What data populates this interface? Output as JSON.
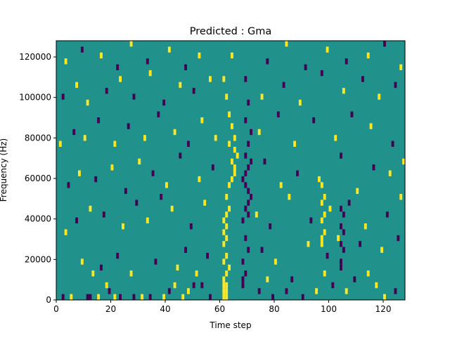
{
  "chart_data": {
    "type": "heatmap",
    "title": "Predicted : Gma",
    "xlabel": "Time step",
    "ylabel": "Frequency (Hz)",
    "xlim": [
      0,
      128
    ],
    "ylim": [
      0,
      128000
    ],
    "x_ticks": [
      0,
      20,
      40,
      60,
      80,
      100,
      120
    ],
    "y_ticks": [
      0,
      20000,
      40000,
      60000,
      80000,
      100000,
      120000
    ],
    "y_tick_labels": [
      "0",
      "20000",
      "40000",
      "60000",
      "80000",
      "100000",
      "120000"
    ],
    "colors": {
      "background": "#21918c",
      "high": "#fde725",
      "low": "#440154"
    },
    "grid": false,
    "legend": false,
    "rows": 44,
    "cells": [
      {
        "t": 61,
        "r": 0,
        "v": 1
      },
      {
        "t": 61,
        "r": 1,
        "v": 1
      },
      {
        "t": 61,
        "r": 2,
        "v": 1
      },
      {
        "t": 62,
        "r": 0,
        "v": 1
      },
      {
        "t": 62,
        "r": 1,
        "v": 1
      },
      {
        "t": 62,
        "r": 2,
        "v": 1
      },
      {
        "t": 61,
        "r": 3,
        "v": 1
      },
      {
        "t": 62,
        "r": 4,
        "v": 1
      },
      {
        "t": 63,
        "r": 5,
        "v": 1
      },
      {
        "t": 61,
        "r": 6,
        "v": 1
      },
      {
        "t": 62,
        "r": 7,
        "v": 1
      },
      {
        "t": 61,
        "r": 9,
        "v": 1
      },
      {
        "t": 62,
        "r": 10,
        "v": 1
      },
      {
        "t": 61,
        "r": 11,
        "v": 1
      },
      {
        "t": 62,
        "r": 12,
        "v": 1
      },
      {
        "t": 61,
        "r": 13,
        "v": 1
      },
      {
        "t": 62,
        "r": 14,
        "v": 1
      },
      {
        "t": 63,
        "r": 15,
        "v": 1
      },
      {
        "t": 62,
        "r": 17,
        "v": 1
      },
      {
        "t": 63,
        "r": 19,
        "v": 1
      },
      {
        "t": 64,
        "r": 20,
        "v": 1
      },
      {
        "t": 65,
        "r": 21,
        "v": 1
      },
      {
        "t": 65,
        "r": 22,
        "v": 1
      },
      {
        "t": 64,
        "r": 23,
        "v": 1
      },
      {
        "t": 66,
        "r": 24,
        "v": 1
      },
      {
        "t": 65,
        "r": 25,
        "v": 1
      },
      {
        "t": 63,
        "r": 26,
        "v": 1
      },
      {
        "t": 65,
        "r": 27,
        "v": 1
      },
      {
        "t": 64,
        "r": 29,
        "v": 1
      },
      {
        "t": 63,
        "r": 31,
        "v": 1
      },
      {
        "t": 62,
        "r": 34,
        "v": 1
      },
      {
        "t": 61,
        "r": 37,
        "v": 1
      },
      {
        "t": 64,
        "r": 41,
        "v": 1
      },
      {
        "t": 68,
        "r": 2,
        "v": -1
      },
      {
        "t": 68,
        "r": 3,
        "v": -1
      },
      {
        "t": 69,
        "r": 4,
        "v": -1
      },
      {
        "t": 68,
        "r": 6,
        "v": -1
      },
      {
        "t": 70,
        "r": 8,
        "v": -1
      },
      {
        "t": 69,
        "r": 10,
        "v": -1
      },
      {
        "t": 68,
        "r": 13,
        "v": -1
      },
      {
        "t": 70,
        "r": 14,
        "v": -1
      },
      {
        "t": 69,
        "r": 15,
        "v": -1
      },
      {
        "t": 70,
        "r": 16,
        "v": -1
      },
      {
        "t": 71,
        "r": 17,
        "v": -1
      },
      {
        "t": 70,
        "r": 18,
        "v": -1
      },
      {
        "t": 69,
        "r": 19,
        "v": -1
      },
      {
        "t": 68,
        "r": 20,
        "v": -1
      },
      {
        "t": 69,
        "r": 21,
        "v": -1
      },
      {
        "t": 70,
        "r": 22,
        "v": -1
      },
      {
        "t": 71,
        "r": 23,
        "v": -1
      },
      {
        "t": 69,
        "r": 24,
        "v": -1
      },
      {
        "t": 70,
        "r": 26,
        "v": -1
      },
      {
        "t": 71,
        "r": 28,
        "v": -1
      },
      {
        "t": 69,
        "r": 30,
        "v": -1
      },
      {
        "t": 70,
        "r": 33,
        "v": -1
      },
      {
        "t": 69,
        "r": 37,
        "v": -1
      },
      {
        "t": 2,
        "r": 0,
        "v": -1
      },
      {
        "t": 11,
        "r": 0,
        "v": -1
      },
      {
        "t": 12,
        "r": 0,
        "v": -1
      },
      {
        "t": 5,
        "r": 0,
        "v": 1
      },
      {
        "t": 15,
        "r": 0,
        "v": 1
      },
      {
        "t": 19,
        "r": 1,
        "v": -1
      },
      {
        "t": 18,
        "r": 2,
        "v": 1
      },
      {
        "t": 21,
        "r": 0,
        "v": 1
      },
      {
        "t": 23,
        "r": 0,
        "v": -1
      },
      {
        "t": 28,
        "r": 0,
        "v": -1
      },
      {
        "t": 31,
        "r": 0,
        "v": 1
      },
      {
        "t": 34,
        "r": 0,
        "v": -1
      },
      {
        "t": 39,
        "r": 0,
        "v": 1
      },
      {
        "t": 41,
        "r": 1,
        "v": -1
      },
      {
        "t": 43,
        "r": 2,
        "v": 1
      },
      {
        "t": 46,
        "r": 0,
        "v": 1
      },
      {
        "t": 48,
        "r": 1,
        "v": 1
      },
      {
        "t": 50,
        "r": 2,
        "v": -1
      },
      {
        "t": 53,
        "r": 2,
        "v": -1
      },
      {
        "t": 56,
        "r": 0,
        "v": -1
      },
      {
        "t": 74,
        "r": 1,
        "v": -1
      },
      {
        "t": 77,
        "r": 3,
        "v": 1
      },
      {
        "t": 79,
        "r": 0,
        "v": -1
      },
      {
        "t": 84,
        "r": 1,
        "v": -1
      },
      {
        "t": 86,
        "r": 3,
        "v": -1
      },
      {
        "t": 90,
        "r": 0,
        "v": -1
      },
      {
        "t": 95,
        "r": 1,
        "v": 1
      },
      {
        "t": 98,
        "r": 4,
        "v": 1
      },
      {
        "t": 101,
        "r": 2,
        "v": -1
      },
      {
        "t": 106,
        "r": 1,
        "v": 1
      },
      {
        "t": 109,
        "r": 3,
        "v": -1
      },
      {
        "t": 114,
        "r": 4,
        "v": 1
      },
      {
        "t": 117,
        "r": 2,
        "v": 1
      },
      {
        "t": 120,
        "r": 0,
        "v": 1
      },
      {
        "t": 124,
        "r": 1,
        "v": -1
      },
      {
        "t": 13,
        "r": 4,
        "v": 1
      },
      {
        "t": 16,
        "r": 5,
        "v": -1
      },
      {
        "t": 9,
        "r": 6,
        "v": 1
      },
      {
        "t": 22,
        "r": 7,
        "v": -1
      },
      {
        "t": 27,
        "r": 4,
        "v": 1
      },
      {
        "t": 36,
        "r": 6,
        "v": -1
      },
      {
        "t": 44,
        "r": 5,
        "v": 1
      },
      {
        "t": 47,
        "r": 8,
        "v": -1
      },
      {
        "t": 51,
        "r": 4,
        "v": 1
      },
      {
        "t": 55,
        "r": 7,
        "v": -1
      },
      {
        "t": 75,
        "r": 8,
        "v": -1
      },
      {
        "t": 80,
        "r": 6,
        "v": 1
      },
      {
        "t": 92,
        "r": 9,
        "v": 1
      },
      {
        "t": 99,
        "r": 7,
        "v": -1
      },
      {
        "t": 103,
        "r": 10,
        "v": 1
      },
      {
        "t": 111,
        "r": 9,
        "v": -1
      },
      {
        "t": 119,
        "r": 8,
        "v": 1
      },
      {
        "t": 125,
        "r": 10,
        "v": -1
      },
      {
        "t": 3,
        "r": 11,
        "v": 1
      },
      {
        "t": 7,
        "r": 13,
        "v": -1
      },
      {
        "t": 12,
        "r": 15,
        "v": 1
      },
      {
        "t": 17,
        "r": 14,
        "v": -1
      },
      {
        "t": 24,
        "r": 12,
        "v": 1
      },
      {
        "t": 29,
        "r": 16,
        "v": -1
      },
      {
        "t": 33,
        "r": 13,
        "v": 1
      },
      {
        "t": 38,
        "r": 17,
        "v": -1
      },
      {
        "t": 42,
        "r": 15,
        "v": 1
      },
      {
        "t": 49,
        "r": 12,
        "v": -1
      },
      {
        "t": 54,
        "r": 16,
        "v": 1
      },
      {
        "t": 73,
        "r": 14,
        "v": 1
      },
      {
        "t": 78,
        "r": 12,
        "v": -1
      },
      {
        "t": 85,
        "r": 17,
        "v": 1
      },
      {
        "t": 93,
        "r": 13,
        "v": -1
      },
      {
        "t": 100,
        "r": 15,
        "v": 1
      },
      {
        "t": 107,
        "r": 16,
        "v": -1
      },
      {
        "t": 113,
        "r": 12,
        "v": 1
      },
      {
        "t": 121,
        "r": 14,
        "v": -1
      },
      {
        "t": 126,
        "r": 17,
        "v": 1
      },
      {
        "t": 4,
        "r": 19,
        "v": -1
      },
      {
        "t": 8,
        "r": 21,
        "v": 1
      },
      {
        "t": 14,
        "r": 20,
        "v": -1
      },
      {
        "t": 20,
        "r": 22,
        "v": 1
      },
      {
        "t": 25,
        "r": 18,
        "v": -1
      },
      {
        "t": 30,
        "r": 23,
        "v": 1
      },
      {
        "t": 35,
        "r": 21,
        "v": -1
      },
      {
        "t": 40,
        "r": 19,
        "v": 1
      },
      {
        "t": 45,
        "r": 24,
        "v": -1
      },
      {
        "t": 52,
        "r": 20,
        "v": 1
      },
      {
        "t": 57,
        "r": 22,
        "v": -1
      },
      {
        "t": 76,
        "r": 23,
        "v": -1
      },
      {
        "t": 82,
        "r": 19,
        "v": 1
      },
      {
        "t": 88,
        "r": 21,
        "v": -1
      },
      {
        "t": 96,
        "r": 20,
        "v": 1
      },
      {
        "t": 104,
        "r": 24,
        "v": -1
      },
      {
        "t": 110,
        "r": 18,
        "v": 1
      },
      {
        "t": 116,
        "r": 22,
        "v": -1
      },
      {
        "t": 122,
        "r": 21,
        "v": 1
      },
      {
        "t": 127,
        "r": 23,
        "v": 1
      },
      {
        "t": 1,
        "r": 26,
        "v": 1
      },
      {
        "t": 6,
        "r": 28,
        "v": -1
      },
      {
        "t": 10,
        "r": 27,
        "v": 1
      },
      {
        "t": 15,
        "r": 30,
        "v": -1
      },
      {
        "t": 21,
        "r": 26,
        "v": 1
      },
      {
        "t": 26,
        "r": 29,
        "v": -1
      },
      {
        "t": 32,
        "r": 27,
        "v": 1
      },
      {
        "t": 37,
        "r": 31,
        "v": -1
      },
      {
        "t": 43,
        "r": 28,
        "v": 1
      },
      {
        "t": 48,
        "r": 26,
        "v": -1
      },
      {
        "t": 53,
        "r": 30,
        "v": 1
      },
      {
        "t": 58,
        "r": 27,
        "v": 1
      },
      {
        "t": 74,
        "r": 28,
        "v": 1
      },
      {
        "t": 81,
        "r": 31,
        "v": -1
      },
      {
        "t": 87,
        "r": 26,
        "v": 1
      },
      {
        "t": 94,
        "r": 30,
        "v": -1
      },
      {
        "t": 102,
        "r": 27,
        "v": 1
      },
      {
        "t": 108,
        "r": 31,
        "v": -1
      },
      {
        "t": 115,
        "r": 29,
        "v": 1
      },
      {
        "t": 123,
        "r": 26,
        "v": -1
      },
      {
        "t": 2,
        "r": 34,
        "v": -1
      },
      {
        "t": 7,
        "r": 36,
        "v": 1
      },
      {
        "t": 11,
        "r": 33,
        "v": 1
      },
      {
        "t": 18,
        "r": 35,
        "v": -1
      },
      {
        "t": 23,
        "r": 37,
        "v": 1
      },
      {
        "t": 28,
        "r": 34,
        "v": -1
      },
      {
        "t": 34,
        "r": 38,
        "v": 1
      },
      {
        "t": 39,
        "r": 33,
        "v": -1
      },
      {
        "t": 45,
        "r": 36,
        "v": 1
      },
      {
        "t": 50,
        "r": 35,
        "v": -1
      },
      {
        "t": 56,
        "r": 37,
        "v": 1
      },
      {
        "t": 75,
        "r": 34,
        "v": 1
      },
      {
        "t": 83,
        "r": 36,
        "v": -1
      },
      {
        "t": 89,
        "r": 33,
        "v": 1
      },
      {
        "t": 97,
        "r": 38,
        "v": -1
      },
      {
        "t": 105,
        "r": 35,
        "v": 1
      },
      {
        "t": 112,
        "r": 37,
        "v": -1
      },
      {
        "t": 118,
        "r": 34,
        "v": 1
      },
      {
        "t": 124,
        "r": 36,
        "v": -1
      },
      {
        "t": 3,
        "r": 40,
        "v": 1
      },
      {
        "t": 9,
        "r": 42,
        "v": -1
      },
      {
        "t": 16,
        "r": 41,
        "v": 1
      },
      {
        "t": 22,
        "r": 39,
        "v": -1
      },
      {
        "t": 27,
        "r": 43,
        "v": 1
      },
      {
        "t": 33,
        "r": 40,
        "v": -1
      },
      {
        "t": 41,
        "r": 42,
        "v": 1
      },
      {
        "t": 47,
        "r": 39,
        "v": -1
      },
      {
        "t": 52,
        "r": 41,
        "v": 1
      },
      {
        "t": 77,
        "r": 40,
        "v": -1
      },
      {
        "t": 84,
        "r": 43,
        "v": 1
      },
      {
        "t": 91,
        "r": 39,
        "v": -1
      },
      {
        "t": 99,
        "r": 42,
        "v": 1
      },
      {
        "t": 106,
        "r": 40,
        "v": -1
      },
      {
        "t": 114,
        "r": 41,
        "v": 1
      },
      {
        "t": 120,
        "r": 43,
        "v": -1
      },
      {
        "t": 126,
        "r": 39,
        "v": 1
      },
      {
        "t": 97,
        "r": 9,
        "v": 1
      },
      {
        "t": 97,
        "r": 10,
        "v": 1
      },
      {
        "t": 98,
        "r": 11,
        "v": 1
      },
      {
        "t": 97,
        "r": 13,
        "v": 1
      },
      {
        "t": 98,
        "r": 14,
        "v": 1
      },
      {
        "t": 97,
        "r": 16,
        "v": 1
      },
      {
        "t": 98,
        "r": 17,
        "v": 1
      },
      {
        "t": 97,
        "r": 19,
        "v": 1
      },
      {
        "t": 104,
        "r": 5,
        "v": -1
      },
      {
        "t": 104,
        "r": 6,
        "v": -1
      },
      {
        "t": 105,
        "r": 8,
        "v": -1
      },
      {
        "t": 104,
        "r": 9,
        "v": -1
      },
      {
        "t": 105,
        "r": 11,
        "v": -1
      },
      {
        "t": 104,
        "r": 12,
        "v": -1
      },
      {
        "t": 105,
        "r": 14,
        "v": -1
      },
      {
        "t": 104,
        "r": 15,
        "v": -1
      }
    ]
  }
}
